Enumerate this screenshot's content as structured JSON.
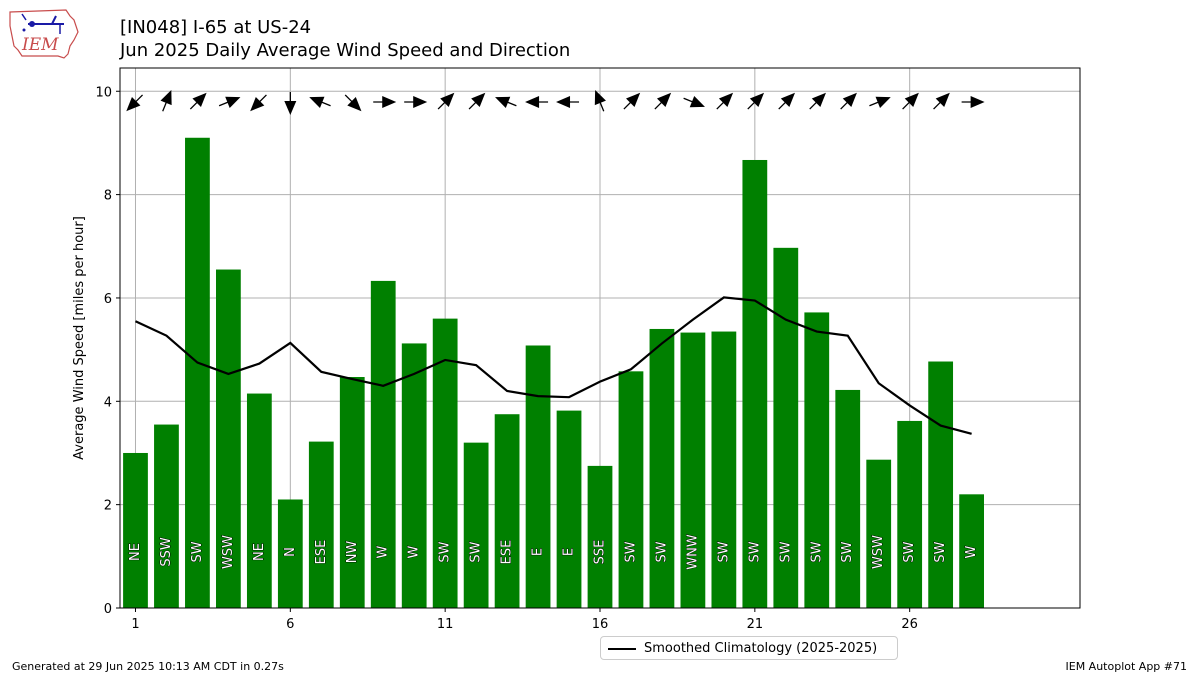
{
  "header": {
    "title_line1": "[IN048] I-65 at US-24",
    "title_line2": "Jun 2025 Daily Average Wind Speed and Direction",
    "logo_text": "IEM"
  },
  "footer": {
    "left": "Generated at 29 Jun 2025 10:13 AM CDT in 0.27s",
    "right": "IEM Autoplot App #71"
  },
  "legend": {
    "label": "Smoothed Climatology (2025-2025)"
  },
  "colors": {
    "bar": "#008000",
    "climatology_line": "#000000",
    "grid": "#b0b0b0"
  },
  "chart_data": {
    "type": "bar",
    "ylabel": "Average Wind Speed [miles per hour]",
    "xlabel": "",
    "xlim": [
      0.5,
      31.5
    ],
    "ylim": [
      0,
      10.45
    ],
    "xticks": [
      1,
      6,
      11,
      16,
      21,
      26
    ],
    "yticks": [
      0,
      2,
      4,
      6,
      8,
      10
    ],
    "grid": true,
    "legend_position": "bottom-center outside",
    "days": [
      1,
      2,
      3,
      4,
      5,
      6,
      7,
      8,
      9,
      10,
      11,
      12,
      13,
      14,
      15,
      16,
      17,
      18,
      19,
      20,
      21,
      22,
      23,
      24,
      25,
      26,
      27,
      28
    ],
    "series": [
      {
        "name": "Daily Average Wind Speed",
        "values": [
          3.0,
          3.55,
          9.1,
          6.55,
          4.15,
          2.1,
          3.22,
          4.47,
          6.33,
          5.12,
          5.6,
          3.2,
          3.75,
          5.08,
          3.82,
          2.75,
          4.58,
          5.4,
          5.33,
          5.35,
          8.67,
          6.97,
          5.72,
          4.22,
          2.87,
          3.62,
          4.77,
          2.2
        ],
        "direction_labels": [
          "NE",
          "SSW",
          "SW",
          "WSW",
          "NE",
          "N",
          "ESE",
          "NW",
          "W",
          "W",
          "SW",
          "SW",
          "ESE",
          "E",
          "E",
          "SSE",
          "SW",
          "SW",
          "WNW",
          "SW",
          "SW",
          "SW",
          "SW",
          "SW",
          "WSW",
          "SW",
          "SW",
          "W"
        ]
      },
      {
        "name": "Smoothed Climatology (2025-2025)",
        "values": [
          5.55,
          5.27,
          4.75,
          4.53,
          4.73,
          5.13,
          4.57,
          4.43,
          4.3,
          4.53,
          4.8,
          4.7,
          4.2,
          4.1,
          4.08,
          4.38,
          4.62,
          5.12,
          5.58,
          6.01,
          5.95,
          5.58,
          5.35,
          5.27,
          4.35,
          3.92,
          3.53,
          3.37
        ]
      }
    ],
    "direction_arrows_heading_deg": [
      45,
      202,
      225,
      248,
      45,
      0,
      112,
      315,
      270,
      270,
      225,
      225,
      112,
      90,
      90,
      158,
      225,
      225,
      292,
      225,
      225,
      225,
      225,
      225,
      248,
      225,
      225,
      270
    ]
  }
}
